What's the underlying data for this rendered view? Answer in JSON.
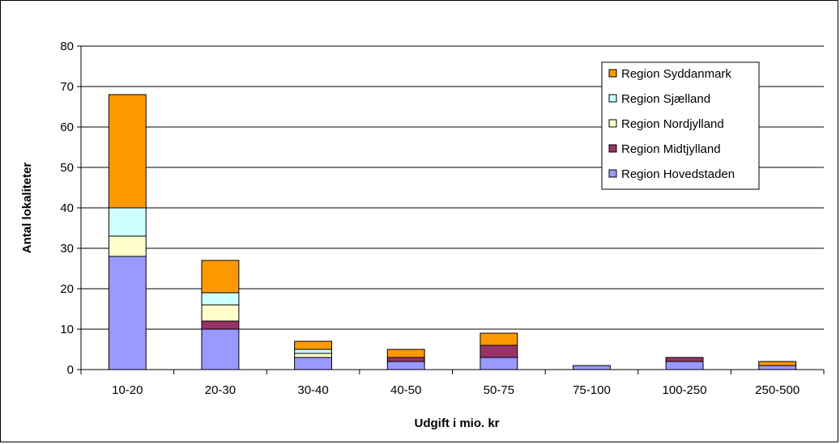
{
  "chart_data": {
    "type": "bar",
    "stacked": true,
    "xlabel": "Udgift i mio. kr",
    "ylabel": "Antal lokaliteter",
    "ylim": [
      0,
      80
    ],
    "yticks": [
      0,
      10,
      20,
      30,
      40,
      50,
      60,
      70,
      80
    ],
    "grid": true,
    "legend_position": "top-right",
    "categories": [
      "10-20",
      "20-30",
      "30-40",
      "40-50",
      "50-75",
      "75-100",
      "100-250",
      "250-500"
    ],
    "series": [
      {
        "name": "Region Hovedstaden",
        "color": "#9999ff",
        "values": [
          28,
          10,
          3,
          2,
          3,
          1,
          2,
          1
        ]
      },
      {
        "name": "Region Midtjylland",
        "color": "#993366",
        "values": [
          0,
          2,
          0,
          1,
          3,
          0,
          1,
          0
        ]
      },
      {
        "name": "Region Nordjylland",
        "color": "#ffffcc",
        "values": [
          5,
          4,
          1,
          0,
          0,
          0,
          0,
          0
        ]
      },
      {
        "name": "Region Sjælland",
        "color": "#ccffff",
        "values": [
          7,
          3,
          1,
          0,
          0,
          0,
          0,
          0
        ]
      },
      {
        "name": "Region Syddanmark",
        "color": "#ff9900",
        "values": [
          28,
          8,
          2,
          2,
          3,
          0,
          0,
          1
        ]
      }
    ]
  }
}
